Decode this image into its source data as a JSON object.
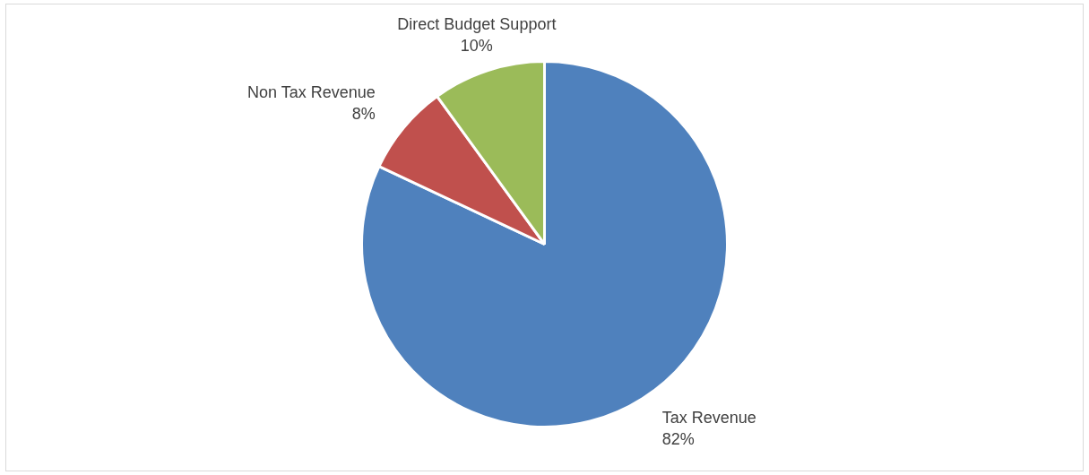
{
  "chart_data": {
    "type": "pie",
    "categories": [
      "Tax Revenue",
      "Non Tax Revenue",
      "Direct Budget Support"
    ],
    "values": [
      82,
      8,
      10
    ],
    "colors": [
      "#4f81bd",
      "#c0504d",
      "#9bbb59"
    ],
    "value_labels": [
      "82%",
      "8%",
      "10%"
    ],
    "legend": false
  }
}
